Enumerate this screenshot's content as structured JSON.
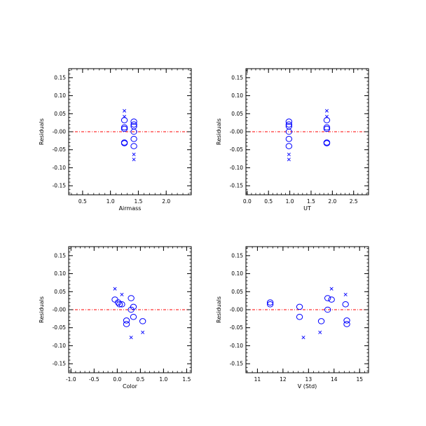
{
  "colors": {
    "markers": "#0000ff",
    "zero_line": "#ff0000",
    "axes": "#000000",
    "background": "#ffffff"
  },
  "chart_data": [
    {
      "type": "scatter",
      "id": "airmass",
      "xlabel": "Airmass",
      "ylabel": "Residuals",
      "xlim": [
        0.25,
        2.45
      ],
      "ylim": [
        -0.175,
        0.175
      ],
      "xticks": [
        0.5,
        1.0,
        1.5,
        2.0
      ],
      "xtick_labels": [
        "0.5",
        "1.0",
        "1.5",
        "2.0"
      ],
      "xminor_step": 0.1,
      "yticks": [
        -0.15,
        -0.1,
        -0.05,
        0.0,
        0.05,
        0.1,
        0.15
      ],
      "ytick_labels": [
        "-0.15",
        "-0.10",
        "-0.05",
        "-0.00",
        "0.05",
        "0.10",
        "0.15"
      ],
      "yminor_step": 0.01,
      "zero_line": true,
      "series": [
        {
          "marker": "circle",
          "points": [
            [
              1.25,
              0.032
            ],
            [
              1.25,
              0.012
            ],
            [
              1.25,
              0.008
            ],
            [
              1.25,
              -0.03
            ],
            [
              1.25,
              -0.032
            ],
            [
              1.42,
              0.028
            ],
            [
              1.42,
              0.02
            ],
            [
              1.42,
              0.015
            ],
            [
              1.42,
              0.0
            ],
            [
              1.42,
              -0.02
            ],
            [
              1.42,
              -0.04
            ]
          ]
        },
        {
          "marker": "x",
          "points": [
            [
              1.25,
              0.058
            ],
            [
              1.25,
              0.042
            ],
            [
              1.42,
              -0.063
            ],
            [
              1.42,
              -0.077
            ]
          ]
        }
      ]
    },
    {
      "type": "scatter",
      "id": "ut",
      "xlabel": "UT",
      "ylabel": "Residuals",
      "xlim": [
        -0.03,
        2.85
      ],
      "ylim": [
        -0.175,
        0.175
      ],
      "xticks": [
        0.0,
        0.5,
        1.0,
        1.5,
        2.0,
        2.5
      ],
      "xtick_labels": [
        "0.0",
        "0.5",
        "1.0",
        "1.5",
        "2.0",
        "2.5"
      ],
      "xminor_step": 0.1,
      "yticks": [
        -0.15,
        -0.1,
        -0.05,
        0.0,
        0.05,
        0.1,
        0.15
      ],
      "ytick_labels": [
        "-0.15",
        "-0.10",
        "-0.05",
        "-0.00",
        "0.05",
        "0.10",
        "0.15"
      ],
      "yminor_step": 0.01,
      "zero_line": true,
      "series": [
        {
          "marker": "circle",
          "points": [
            [
              0.98,
              0.028
            ],
            [
              0.98,
              0.02
            ],
            [
              0.98,
              0.015
            ],
            [
              0.98,
              0.0
            ],
            [
              0.98,
              -0.02
            ],
            [
              0.98,
              -0.04
            ],
            [
              1.87,
              0.032
            ],
            [
              1.87,
              0.012
            ],
            [
              1.87,
              0.008
            ],
            [
              1.87,
              -0.03
            ],
            [
              1.87,
              -0.032
            ]
          ]
        },
        {
          "marker": "x",
          "points": [
            [
              0.98,
              -0.063
            ],
            [
              0.98,
              -0.077
            ],
            [
              1.87,
              0.058
            ],
            [
              1.87,
              0.042
            ]
          ]
        }
      ]
    },
    {
      "type": "scatter",
      "id": "color",
      "xlabel": "Color",
      "ylabel": "Residuals",
      "xlim": [
        -1.05,
        1.6
      ],
      "ylim": [
        -0.175,
        0.175
      ],
      "xticks": [
        -1.0,
        -0.5,
        0.0,
        0.5,
        1.0,
        1.5
      ],
      "xtick_labels": [
        "-1.0",
        "-0.5",
        "0.0",
        "0.5",
        "1.0",
        "1.5"
      ],
      "xminor_step": 0.1,
      "yticks": [
        -0.15,
        -0.1,
        -0.05,
        0.0,
        0.05,
        0.1,
        0.15
      ],
      "ytick_labels": [
        "-0.15",
        "-0.10",
        "-0.05",
        "-0.00",
        "0.05",
        "0.10",
        "0.15"
      ],
      "yminor_step": 0.01,
      "zero_line": true,
      "series": [
        {
          "marker": "circle",
          "points": [
            [
              -0.05,
              0.028
            ],
            [
              0.02,
              0.02
            ],
            [
              0.05,
              0.015
            ],
            [
              0.1,
              0.015
            ],
            [
              0.2,
              -0.03
            ],
            [
              0.2,
              -0.04
            ],
            [
              0.3,
              0.032
            ],
            [
              0.3,
              0.0
            ],
            [
              0.35,
              0.008
            ],
            [
              0.35,
              -0.02
            ],
            [
              0.55,
              -0.032
            ]
          ]
        },
        {
          "marker": "x",
          "points": [
            [
              -0.05,
              0.058
            ],
            [
              0.1,
              0.042
            ],
            [
              0.3,
              -0.077
            ],
            [
              0.55,
              -0.063
            ]
          ]
        }
      ]
    },
    {
      "type": "scatter",
      "id": "vstd",
      "xlabel": "V (Std)",
      "ylabel": "Residuals",
      "xlim": [
        10.55,
        15.35
      ],
      "ylim": [
        -0.175,
        0.175
      ],
      "xticks": [
        11,
        12,
        13,
        14,
        15
      ],
      "xtick_labels": [
        "11",
        "12",
        "13",
        "14",
        "15"
      ],
      "xminor_step": 0.2,
      "yticks": [
        -0.15,
        -0.1,
        -0.05,
        0.0,
        0.05,
        0.1,
        0.15
      ],
      "ytick_labels": [
        "-0.15",
        "-0.10",
        "-0.05",
        "-0.00",
        "0.05",
        "0.10",
        "0.15"
      ],
      "yminor_step": 0.01,
      "zero_line": true,
      "series": [
        {
          "marker": "circle",
          "points": [
            [
              11.5,
              0.02
            ],
            [
              11.5,
              0.015
            ],
            [
              12.65,
              0.008
            ],
            [
              12.65,
              -0.02
            ],
            [
              13.5,
              -0.032
            ],
            [
              13.75,
              0.032
            ],
            [
              13.75,
              0.0
            ],
            [
              13.9,
              0.028
            ],
            [
              14.45,
              0.015
            ],
            [
              14.5,
              -0.03
            ],
            [
              14.5,
              -0.04
            ]
          ]
        },
        {
          "marker": "x",
          "points": [
            [
              12.8,
              -0.077
            ],
            [
              13.45,
              -0.063
            ],
            [
              13.9,
              0.058
            ],
            [
              14.45,
              0.042
            ]
          ]
        }
      ]
    }
  ]
}
